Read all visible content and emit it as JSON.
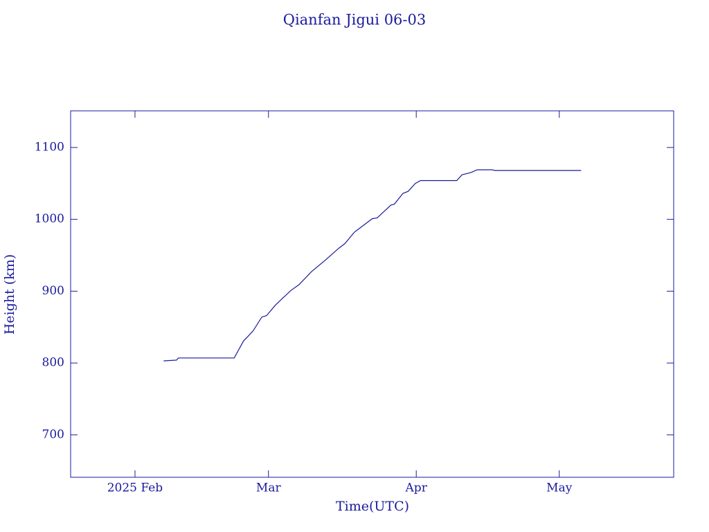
{
  "chart_data": {
    "type": "line",
    "title": "Qianfan Jigui 06-03",
    "x_label": "Time(UTC)",
    "y_label": "Height (km)",
    "color": "#1a1a9c",
    "x": [
      6.0,
      8.7,
      9.1,
      20.8,
      22.8,
      23.7,
      24.8,
      26.6,
      27.6,
      29.5,
      32.7,
      34.4,
      37.0,
      39.9,
      42.8,
      44.0,
      46.0,
      47.2,
      49.8,
      50.8,
      53.7,
      54.4,
      56.2,
      57.3,
      58.8,
      59.9,
      67.5,
      68.6,
      70.4,
      71.8,
      75.0,
      75.4,
      93.6
    ],
    "values": [
      803,
      804,
      807,
      807,
      831,
      837,
      845,
      864,
      866,
      881,
      901,
      909,
      927,
      943,
      960,
      966,
      982,
      988,
      1001,
      1002,
      1020,
      1021,
      1036,
      1039,
      1050,
      1054,
      1054,
      1062,
      1065,
      1069,
      1069,
      1068,
      1068
    ],
    "xlim": [
      -13.5,
      113
    ],
    "xticks": [
      {
        "value": 0,
        "label": "2025 Feb"
      },
      {
        "value": 28,
        "label": "Mar"
      },
      {
        "value": 59,
        "label": "Apr"
      },
      {
        "value": 89,
        "label": "May"
      }
    ],
    "ylim": [
      641,
      1151
    ],
    "yticks": [
      700,
      800,
      900,
      1000,
      1100
    ]
  }
}
